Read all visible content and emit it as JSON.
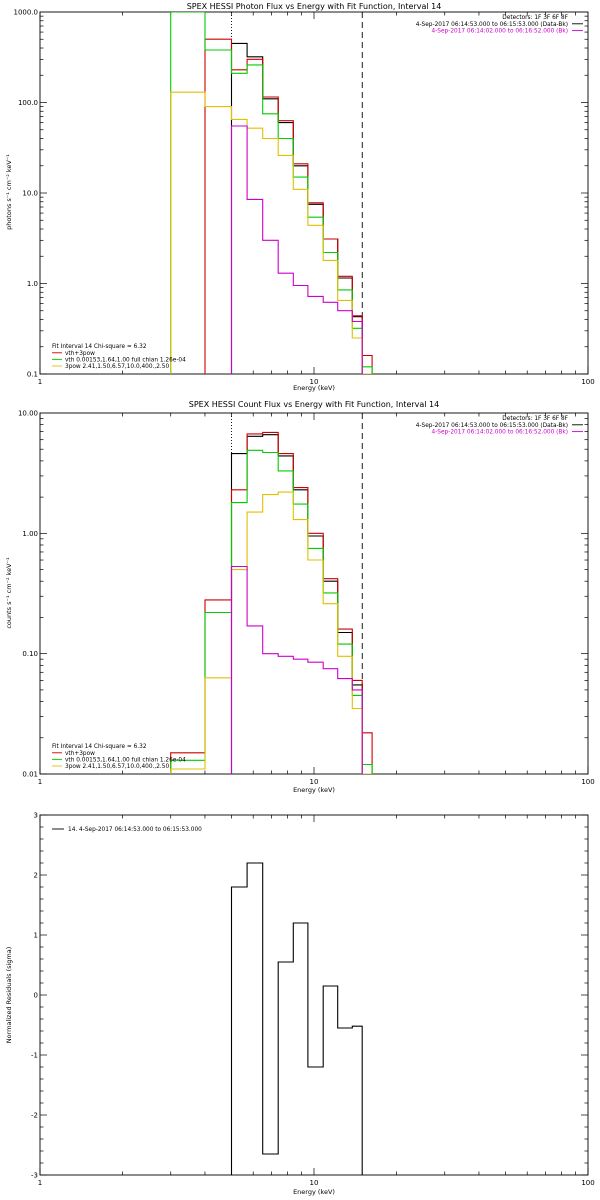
{
  "chart_data": [
    {
      "type": "line",
      "title": "SPEX HESSI Photon Flux vs Energy with Fit Function, Interval 14",
      "xlabel": "Energy (keV)",
      "ylabel": "photons s⁻¹ cm⁻² keV⁻¹",
      "x_scale": "log",
      "y_scale": "log",
      "xlim": [
        1,
        100
      ],
      "ylim": [
        0.1,
        1000
      ],
      "x_ticks": [
        1,
        10,
        100
      ],
      "x_tick_labels": [
        "1",
        "10",
        "100"
      ],
      "y_ticks": [
        0.1,
        1,
        10,
        100,
        1000
      ],
      "y_tick_labels": [
        "0.1",
        "1.0",
        "10.0",
        "100.0",
        "1000.0"
      ],
      "vlines": [
        {
          "x": 5.0,
          "style": "dotted",
          "color": "#000000"
        },
        {
          "x": 15.0,
          "style": "dashed",
          "color": "#000000"
        }
      ],
      "info_top_right": [
        {
          "text": "Detectors: 1F 3F 6F 8F",
          "color": "#000000"
        },
        {
          "text": "4-Sep-2017 06:14:53.000 to 06:15:53.000 (Data-Bk)",
          "color": "#000000"
        },
        {
          "text": "4-Sep-2017 06:14:02.000 to 06:16:52.000 (Bk)",
          "color": "#cc00cc"
        }
      ],
      "legend_bottom_left": [
        {
          "text": "Fit Interval 14   Chi-square = 6.32",
          "color": "#000000"
        },
        {
          "text": "vth+3pow",
          "color": "#cc0000"
        },
        {
          "text": "vth 0.00153,1.64,1.00  full chian 1.26e-04",
          "color": "#00cc00"
        },
        {
          "text": "3pow 2.41,1.50,6.57,10.0,400.,2.50",
          "color": "#e0c000"
        }
      ],
      "series": [
        {
          "color": "#000000",
          "edges": [
            5.0,
            5.7,
            6.5,
            7.4,
            8.4,
            9.5,
            10.8,
            12.2,
            13.8,
            15.0
          ],
          "values": [
            450,
            320,
            110,
            60,
            20,
            7.5,
            3.1,
            1.15,
            0.43
          ]
        },
        {
          "color": "#cc0000",
          "edges": [
            4.0,
            5.0,
            5.7,
            6.5,
            7.4,
            8.4,
            9.5,
            10.8,
            12.2,
            13.8,
            15.0,
            16.3
          ],
          "values": [
            500,
            230,
            300,
            115,
            63,
            21,
            7.8,
            3.1,
            1.2,
            0.44,
            0.16
          ]
        },
        {
          "color": "#00cc00",
          "edges": [
            3.0,
            4.0,
            5.0,
            5.7,
            6.5,
            7.4,
            8.4,
            9.5,
            10.8,
            12.2,
            13.8,
            15.0,
            16.3
          ],
          "values": [
            1000,
            380,
            210,
            260,
            75,
            40,
            15,
            5.4,
            2.2,
            0.85,
            0.32,
            0.12
          ]
        },
        {
          "color": "#e0c000",
          "edges": [
            3.0,
            4.0,
            5.0,
            5.7,
            6.5,
            7.4,
            8.4,
            9.5,
            10.8,
            12.2,
            13.8,
            15.0,
            16.3
          ],
          "values": [
            130,
            90,
            65,
            52,
            40,
            26,
            11,
            4.4,
            1.8,
            0.65,
            0.25,
            0.1
          ]
        },
        {
          "color": "#cc00cc",
          "edges": [
            5.0,
            5.7,
            6.5,
            7.4,
            8.4,
            9.5,
            10.8,
            12.2,
            13.8,
            15.0
          ],
          "values": [
            55,
            8.5,
            3.0,
            1.3,
            0.95,
            0.72,
            0.62,
            0.5,
            0.38
          ]
        }
      ]
    },
    {
      "type": "line",
      "title": "SPEX HESSI Count Flux vs Energy with Fit Function, Interval 14",
      "xlabel": "Energy (keV)",
      "ylabel": "counts s⁻¹ cm⁻² keV⁻¹",
      "x_scale": "log",
      "y_scale": "log",
      "xlim": [
        1,
        100
      ],
      "ylim": [
        0.01,
        10
      ],
      "x_ticks": [
        1,
        10,
        100
      ],
      "x_tick_labels": [
        "1",
        "10",
        "100"
      ],
      "y_ticks": [
        0.01,
        0.1,
        1,
        10
      ],
      "y_tick_labels": [
        "0.01",
        "0.10",
        "1.00",
        "10.00"
      ],
      "vlines": [
        {
          "x": 5.0,
          "style": "dotted",
          "color": "#000000"
        },
        {
          "x": 15.0,
          "style": "dashed",
          "color": "#000000"
        }
      ],
      "info_top_right": [
        {
          "text": "Detectors: 1F 3F 6F 8F",
          "color": "#000000"
        },
        {
          "text": "4-Sep-2017 06:14:53.000 to 06:15:53.000 (Data-Bk)",
          "color": "#000000"
        },
        {
          "text": "4-Sep-2017 06:14:02.000 to 06:16:52.000 (Bk)",
          "color": "#cc00cc"
        }
      ],
      "legend_bottom_left": [
        {
          "text": "Fit Interval 14   Chi-square = 6.32",
          "color": "#000000"
        },
        {
          "text": "vth+3pow",
          "color": "#cc0000"
        },
        {
          "text": "vth 0.00153,1.64,1.00  full chian 1.26e-04",
          "color": "#00cc00"
        },
        {
          "text": "3pow 2.41,1.50,6.57,10.0,400.,2.50",
          "color": "#e0c000"
        }
      ],
      "series": [
        {
          "color": "#000000",
          "edges": [
            5.0,
            5.7,
            6.5,
            7.4,
            8.4,
            9.5,
            10.8,
            12.2,
            13.8,
            15.0
          ],
          "values": [
            4.6,
            6.4,
            6.6,
            4.4,
            2.3,
            0.95,
            0.4,
            0.15,
            0.055
          ]
        },
        {
          "color": "#cc0000",
          "edges": [
            3.0,
            4.0,
            5.0,
            5.7,
            6.5,
            7.4,
            8.4,
            9.5,
            10.8,
            12.2,
            13.8,
            15.0,
            16.3
          ],
          "values": [
            0.015,
            0.28,
            2.3,
            6.7,
            6.9,
            4.6,
            2.4,
            1.0,
            0.42,
            0.16,
            0.06,
            0.022
          ]
        },
        {
          "color": "#00cc00",
          "edges": [
            3.0,
            4.0,
            5.0,
            5.7,
            6.5,
            7.4,
            8.4,
            9.5,
            10.8,
            12.2,
            13.8,
            15.0,
            16.3
          ],
          "values": [
            0.013,
            0.22,
            1.8,
            4.9,
            4.7,
            3.3,
            1.75,
            0.75,
            0.32,
            0.12,
            0.045,
            0.012
          ]
        },
        {
          "color": "#e0c000",
          "edges": [
            3.0,
            4.0,
            5.0,
            5.7,
            6.5,
            7.4,
            8.4,
            9.5,
            10.8,
            12.2,
            13.8,
            15.0,
            16.3
          ],
          "values": [
            0.011,
            0.063,
            0.5,
            1.5,
            2.1,
            2.2,
            1.3,
            0.6,
            0.26,
            0.095,
            0.035,
            0.01
          ]
        },
        {
          "color": "#cc00cc",
          "edges": [
            5.0,
            5.7,
            6.5,
            7.4,
            8.4,
            9.5,
            10.8,
            12.2,
            13.8,
            15.0
          ],
          "values": [
            0.53,
            0.17,
            0.1,
            0.095,
            0.09,
            0.085,
            0.075,
            0.062,
            0.05
          ]
        }
      ]
    },
    {
      "type": "line",
      "title": "",
      "xlabel": "Energy (keV)",
      "ylabel": "Normalized Residuals (sigma)",
      "x_scale": "log",
      "y_scale": "linear",
      "xlim": [
        1,
        100
      ],
      "ylim": [
        -3,
        3
      ],
      "x_ticks": [
        1,
        10,
        100
      ],
      "x_tick_labels": [
        "1",
        "10",
        "100"
      ],
      "y_ticks": [
        -3,
        -2,
        -1,
        0,
        1,
        2,
        3
      ],
      "y_tick_labels": [
        "-3",
        "-2",
        "-1",
        "0",
        "1",
        "2",
        "3"
      ],
      "vlines": [],
      "info_top_right": [],
      "legend_top_left": [
        {
          "text": "14.  4-Sep-2017 06:14:53.000 to 06:15:53.000",
          "color": "#000000"
        }
      ],
      "series": [
        {
          "color": "#000000",
          "edges": [
            5.0,
            5.7,
            6.5,
            7.4,
            8.4,
            9.5,
            10.8,
            12.2,
            13.8,
            15.0
          ],
          "values": [
            1.8,
            2.2,
            -2.65,
            0.55,
            1.2,
            -1.2,
            0.15,
            -0.55,
            -0.52
          ]
        }
      ]
    }
  ]
}
